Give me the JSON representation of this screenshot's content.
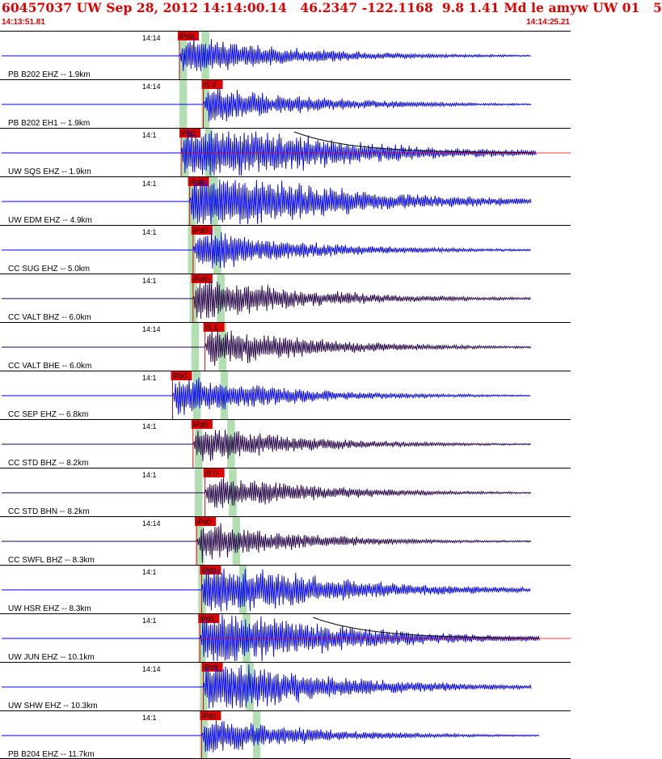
{
  "header": {
    "title": "60457037 UW Sep 28, 2012 14:14:00.14   46.2347 -122.1168  9.8 1.41 Md le amyw UW 01   5",
    "start_time": "14:13:51.81",
    "end_time": "14:14:25.21"
  },
  "colors": {
    "header_text": "#e00000",
    "trace_blue": "#0000ee",
    "trace_dark": "#220044",
    "pick_box": "#e00000",
    "phase_band": "#a8dca8",
    "coda_line": "#000000"
  },
  "chart_data": {
    "type": "line",
    "title": "60457037 UW Sep 28, 2012 14:14:00.14   46.2347 -122.1168  9.8 1.41 Md le amyw UW 01   5",
    "xlim_labels": [
      "14:13:51.81",
      "14:14:25.21"
    ],
    "time_window_s": [
      0,
      33.4
    ],
    "traces": [
      {
        "label": "PB B202 EHZ -- 1.9km",
        "dist_km": 1.9,
        "tick": "14:14",
        "pick": "iPd0",
        "pick_s": 10.5,
        "end_s": 31.1,
        "color": "blue",
        "amp": 1.0,
        "clip": false,
        "coda": false
      },
      {
        "label": "PB B202 EH1 -- 1.9km",
        "dist_km": 1.9,
        "tick": "14:14",
        "pick": "iS 0",
        "pick_s": 11.9,
        "end_s": 31.1,
        "color": "blue",
        "amp": 0.9,
        "clip": false,
        "coda": false
      },
      {
        "label": "UW SQS EHZ -- 1.9km",
        "dist_km": 1.9,
        "tick": "14:1",
        "pick": "iPd0",
        "pick_s": 10.6,
        "end_s": 31.4,
        "color": "blue",
        "amp": 1.8,
        "clip": true,
        "coda": true
      },
      {
        "label": "UW EDM EHZ -- 4.9km",
        "dist_km": 4.9,
        "tick": "14:1",
        "pick": "iPd0",
        "pick_s": 11.1,
        "end_s": 31.1,
        "color": "blue",
        "amp": 1.8,
        "clip": true,
        "coda": false
      },
      {
        "label": "CC SUG EHZ -- 5.0km",
        "dist_km": 5.0,
        "tick": "14:1",
        "pick": "iPd0",
        "pick_s": 11.3,
        "end_s": 31.1,
        "color": "blue",
        "amp": 1.0,
        "clip": false,
        "coda": false
      },
      {
        "label": "CC VALT BHZ -- 6.0km",
        "dist_km": 6.0,
        "tick": "14:1",
        "pick": "iPd0",
        "pick_s": 11.3,
        "end_s": 31.1,
        "color": "dark",
        "amp": 1.1,
        "clip": false,
        "coda": false
      },
      {
        "label": "CC VALT BHE -- 6.0km",
        "dist_km": 6.0,
        "tick": "14:14",
        "pick": "iS 1",
        "pick_s": 12.0,
        "end_s": 31.1,
        "color": "dark",
        "amp": 1.0,
        "clip": false,
        "coda": false
      },
      {
        "label": "CC SEP EHZ -- 6.8km",
        "dist_km": 6.8,
        "tick": "14:1",
        "pick": "iPd0",
        "pick_s": 10.1,
        "end_s": 31.1,
        "color": "blue",
        "amp": 1.0,
        "clip": false,
        "coda": false
      },
      {
        "label": "CC STD BHZ -- 8.2km",
        "dist_km": 8.2,
        "tick": "14:1",
        "pick": "iPd0",
        "pick_s": 11.3,
        "end_s": 31.1,
        "color": "dark",
        "amp": 0.9,
        "clip": false,
        "coda": false
      },
      {
        "label": "CC STD BHN -- 8.2km",
        "dist_km": 8.2,
        "tick": "14:1",
        "pick": "iS 0",
        "pick_s": 12.0,
        "end_s": 31.1,
        "color": "dark",
        "amp": 0.9,
        "clip": false,
        "coda": false
      },
      {
        "label": "CC SWFL BHZ -- 8.3km",
        "dist_km": 8.3,
        "tick": "14:14",
        "pick": "iPd0",
        "pick_s": 11.5,
        "end_s": 31.1,
        "color": "dark",
        "amp": 0.9,
        "clip": false,
        "coda": false
      },
      {
        "label": "UW HSR EHZ -- 8.3km",
        "dist_km": 8.3,
        "tick": "14:1",
        "pick": "iPd0",
        "pick_s": 11.8,
        "end_s": 31.1,
        "color": "blue",
        "amp": 1.5,
        "clip": false,
        "coda": false
      },
      {
        "label": "UW JUN EHZ -- 10.1km",
        "dist_km": 10.1,
        "tick": "14:1",
        "pick": "iPd0",
        "pick_s": 11.7,
        "end_s": 31.6,
        "color": "blue",
        "amp": 1.6,
        "clip": true,
        "coda": true
      },
      {
        "label": "UW SHW EHZ -- 10.3km",
        "dist_km": 10.3,
        "tick": "14:14",
        "pick": "iPd0",
        "pick_s": 11.9,
        "end_s": 31.1,
        "color": "blue",
        "amp": 1.4,
        "clip": false,
        "coda": false
      },
      {
        "label": "PB B204 EHZ -- 11.7km",
        "dist_km": 11.7,
        "tick": "14:1",
        "pick": "iPd0",
        "pick_s": 11.8,
        "end_s": 31.6,
        "color": "blue",
        "amp": 0.9,
        "clip": false,
        "coda": false
      }
    ],
    "phase_bands": [
      {
        "name": "P",
        "start_s": [
          10.5,
          10.5,
          10.6,
          11.0,
          11.0,
          11.1,
          11.2,
          11.3,
          11.4,
          11.4,
          11.5,
          11.6,
          11.6,
          11.7,
          11.7
        ],
        "width_s": 0.45
      },
      {
        "name": "S",
        "start_s": [
          11.8,
          11.8,
          12.0,
          12.3,
          12.5,
          12.7,
          12.8,
          12.9,
          13.3,
          13.4,
          13.6,
          14.0,
          14.2,
          14.4,
          14.8
        ],
        "width_s": 0.45
      }
    ]
  }
}
